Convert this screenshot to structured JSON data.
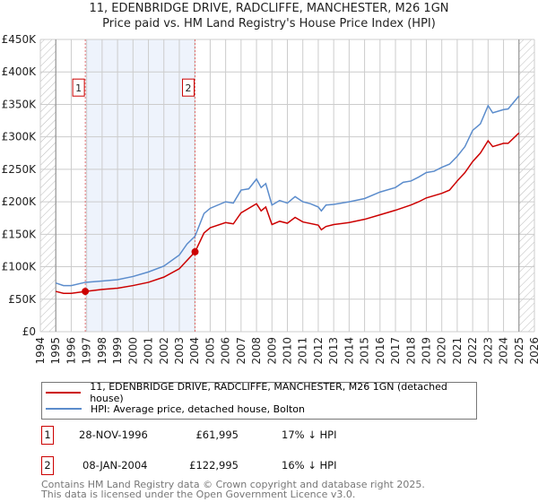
{
  "chart_data": {
    "type": "line",
    "title": "11, EDENBRIDGE DRIVE, RADCLIFFE, MANCHESTER, M26 1GN",
    "subtitle": "Price paid vs. HM Land Registry's House Price Index (HPI)",
    "xlim": [
      1994,
      2026
    ],
    "ylim": [
      0,
      450000
    ],
    "x_ticks": [
      "1994",
      "1995",
      "1996",
      "1997",
      "1998",
      "1999",
      "2000",
      "2001",
      "2002",
      "2003",
      "2004",
      "2005",
      "2006",
      "2007",
      "2008",
      "2009",
      "2010",
      "2011",
      "2012",
      "2013",
      "2014",
      "2015",
      "2016",
      "2017",
      "2018",
      "2019",
      "2020",
      "2021",
      "2022",
      "2023",
      "2024",
      "2025",
      "2026"
    ],
    "y_ticks": [
      {
        "v": 0,
        "label": "£0"
      },
      {
        "v": 50000,
        "label": "£50K"
      },
      {
        "v": 100000,
        "label": "£100K"
      },
      {
        "v": 150000,
        "label": "£150K"
      },
      {
        "v": 200000,
        "label": "£200K"
      },
      {
        "v": 250000,
        "label": "£250K"
      },
      {
        "v": 300000,
        "label": "£300K"
      },
      {
        "v": 350000,
        "label": "£350K"
      },
      {
        "v": 400000,
        "label": "£400K"
      },
      {
        "v": 450000,
        "label": "£450K"
      }
    ],
    "grid": true,
    "shaded_range": [
      1996.91,
      2004.02
    ],
    "hatched_ranges": [
      [
        1994,
        1995
      ],
      [
        2025,
        2026
      ]
    ],
    "series": [
      {
        "name": "11, EDENBRIDGE DRIVE, RADCLIFFE, MANCHESTER, M26 1GN (detached house)",
        "color": "#cc0000",
        "x": [
          1995,
          1995.5,
          1996,
          1996.91,
          1998,
          1999,
          2000,
          2001,
          2002,
          2003,
          2004.02,
          2004.6,
          2005,
          2006,
          2006.5,
          2007,
          2008,
          2008.3,
          2008.6,
          2009,
          2009.5,
          2010,
          2010.5,
          2011,
          2012,
          2012.2,
          2012.5,
          2013,
          2014,
          2015,
          2016,
          2017,
          2018,
          2018.5,
          2019,
          2020,
          2020.5,
          2021,
          2021.5,
          2022,
          2022.5,
          2023,
          2023.3,
          2024,
          2024.3,
          2025
        ],
        "y": [
          62000,
          59000,
          59000,
          61995,
          65000,
          67000,
          71000,
          76000,
          84000,
          97000,
          122995,
          152000,
          160000,
          168000,
          166000,
          183000,
          197000,
          186000,
          192000,
          165000,
          170000,
          167000,
          176000,
          169000,
          164000,
          157000,
          162000,
          165000,
          168000,
          173000,
          180000,
          187000,
          195000,
          200000,
          206000,
          213000,
          218000,
          232000,
          245000,
          262000,
          275000,
          294000,
          285000,
          290000,
          290000,
          306000
        ]
      },
      {
        "name": "HPI: Average price, detached house, Bolton",
        "color": "#5b8ccc",
        "x": [
          1995,
          1995.5,
          1996,
          1996.91,
          1998,
          1999,
          2000,
          2001,
          2002,
          2003,
          2003.5,
          2004.02,
          2004.6,
          2005,
          2006,
          2006.5,
          2007,
          2007.5,
          2008,
          2008.3,
          2008.6,
          2009,
          2009.5,
          2010,
          2010.5,
          2011,
          2011.5,
          2012,
          2012.2,
          2012.5,
          2013,
          2014,
          2015,
          2016,
          2017,
          2017.5,
          2018,
          2018.5,
          2019,
          2019.5,
          2020,
          2020.5,
          2021,
          2021.5,
          2022,
          2022.5,
          2023,
          2023.3,
          2024,
          2024.3,
          2025
        ],
        "y": [
          75000,
          71000,
          71000,
          76000,
          78000,
          80000,
          85000,
          92000,
          101000,
          118000,
          135000,
          147000,
          182000,
          190000,
          200000,
          198000,
          218000,
          220000,
          235000,
          222000,
          228000,
          195000,
          202000,
          198000,
          208000,
          200000,
          197000,
          192000,
          186000,
          195000,
          196000,
          200000,
          205000,
          215000,
          222000,
          230000,
          232000,
          238000,
          245000,
          247000,
          253000,
          258000,
          270000,
          285000,
          310000,
          320000,
          348000,
          337000,
          342000,
          343000,
          363000
        ]
      }
    ],
    "sales": [
      {
        "id": "1",
        "x": 1996.91,
        "y": 61995
      },
      {
        "id": "2",
        "x": 2004.02,
        "y": 122995
      }
    ],
    "legend_placement": "below"
  },
  "table": [
    {
      "id": "1",
      "date": "28-NOV-1996",
      "price": "£61,995",
      "delta": "17% ↓ HPI"
    },
    {
      "id": "2",
      "date": "08-JAN-2004",
      "price": "£122,995",
      "delta": "16% ↓ HPI"
    }
  ],
  "footer": [
    "Contains HM Land Registry data © Crown copyright and database right 2025.",
    "This data is licensed under the Open Government Licence v3.0."
  ]
}
